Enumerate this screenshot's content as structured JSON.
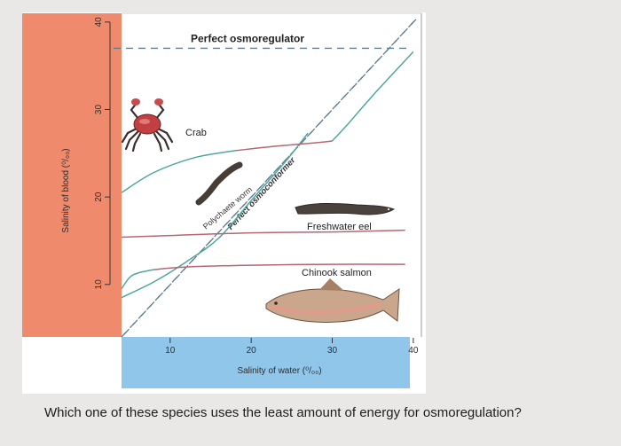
{
  "question": {
    "text": "Which one of these species uses the least amount of energy for osmoregulation?"
  },
  "chart_data": {
    "type": "line",
    "title": "",
    "xlabel": "Salinity of water (⁰/₀₀)",
    "ylabel": "Salinity of blood (⁰/₀₀)",
    "xlim": [
      4,
      41
    ],
    "ylim": [
      4,
      41
    ],
    "x_ticks": [
      10,
      20,
      30,
      40
    ],
    "y_ticks": [
      10,
      20,
      30,
      40
    ],
    "grid": false,
    "colors": {
      "y_axis_band": "#ef8a6c",
      "x_axis_band": "#8fc6ea",
      "regulator_curves": "#b56773",
      "conformer_curves": "#4ea79f",
      "reference_lines": "#5f7e92"
    },
    "reference_lines": [
      {
        "label": "Perfect osmoregulator",
        "style": "dashed-horizontal",
        "y": 37
      },
      {
        "label": "Perfect osmoconformer",
        "style": "dashed-diagonal",
        "x": [
          4,
          40
        ],
        "y": [
          4,
          40
        ]
      }
    ],
    "series": [
      {
        "name": "Crab",
        "icon": "crab-icon",
        "x": [
          4,
          8,
          13,
          18,
          23,
          28,
          30
        ],
        "y": [
          20.5,
          22.8,
          24.5,
          25.3,
          25.8,
          26.2,
          26.4
        ]
      },
      {
        "name": "Crab",
        "role": "conformer",
        "icon": "crab-icon",
        "x": [
          30,
          32,
          35,
          40
        ],
        "y": [
          26.4,
          28.4,
          31.6,
          36.6
        ]
      },
      {
        "name": "Polychaete worm",
        "icon": "worm-icon",
        "x": [
          4,
          8,
          12,
          16,
          20,
          24,
          27
        ],
        "y": [
          8.5,
          10.3,
          12.6,
          15.3,
          19.6,
          23.8,
          27.3
        ]
      },
      {
        "name": "Freshwater eel",
        "icon": "eel-icon",
        "x": [
          4,
          10,
          20,
          30,
          39
        ],
        "y": [
          15.4,
          15.6,
          15.9,
          16.0,
          16.2
        ]
      },
      {
        "name": "Chinook salmon",
        "icon": "salmon-icon",
        "x": [
          4,
          5,
          6,
          8,
          12,
          20,
          30,
          39
        ],
        "y": [
          9.5,
          10.8,
          11.3,
          11.7,
          12.0,
          12.2,
          12.3,
          12.3
        ]
      }
    ]
  }
}
